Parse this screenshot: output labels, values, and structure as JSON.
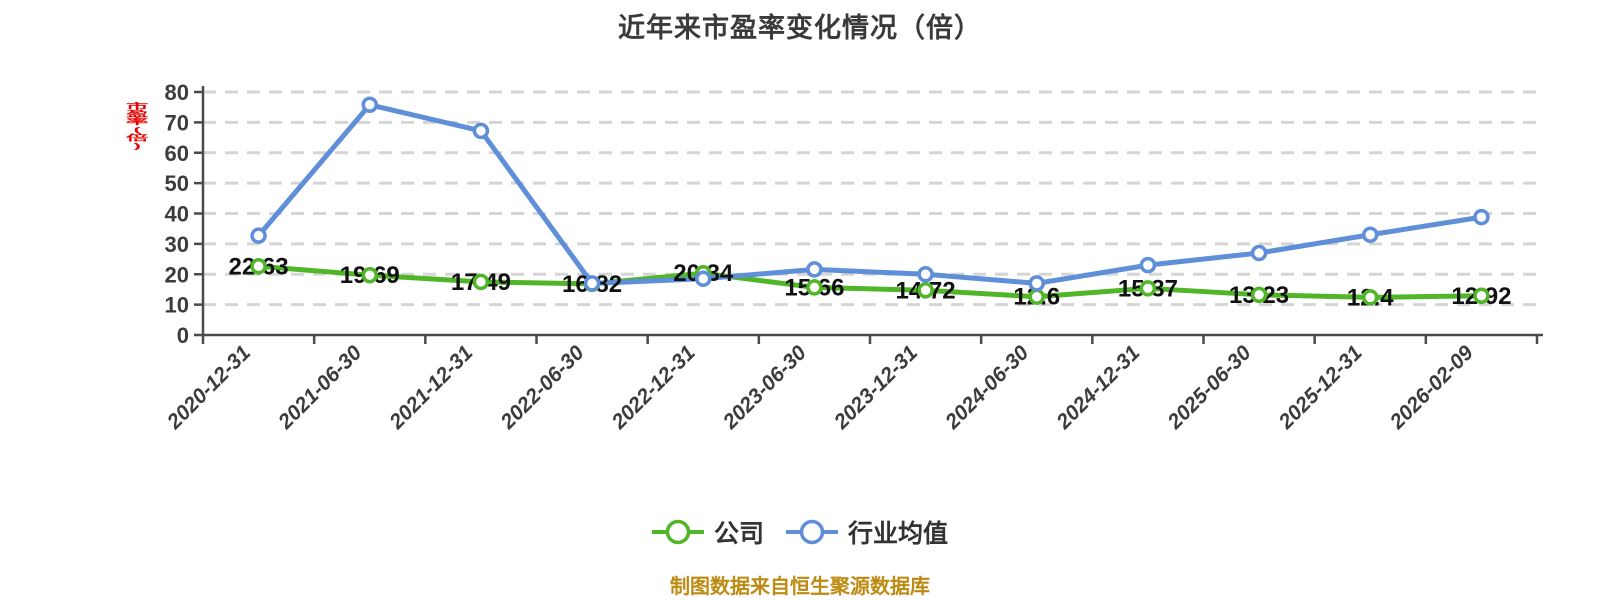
{
  "title": "近年来市盈率变化情况（倍）",
  "y_axis_label": {
    "text": "市盈率(倍)",
    "color": "#e60000"
  },
  "footer": {
    "text": "制图数据来自恒生聚源数据库"
  },
  "legend": {
    "items": [
      {
        "label": "公司",
        "color": "#50b628"
      },
      {
        "label": "行业均值",
        "color": "#5e8fd8"
      }
    ]
  },
  "colors": {
    "background": "#ffffff",
    "title": "#3a3a3a",
    "axis": "#4a4a4a",
    "tick_label": "#3c3c3c",
    "gridline": "#d5d5d5",
    "value_label": "#111111",
    "company_series": "#50b628",
    "industry_series": "#5e8fd8",
    "marker_fill": "#ffffff"
  },
  "chart_data": {
    "type": "line",
    "title": "近年来市盈率变化情况（倍）",
    "categories": [
      "2020-12-31",
      "2021-06-30",
      "2021-12-31",
      "2022-06-30",
      "2022-12-31",
      "2023-06-30",
      "2023-12-31",
      "2024-06-30",
      "2024-12-31",
      "2025-06-30",
      "2025-12-31",
      "2026-02-09"
    ],
    "series": [
      {
        "name": "公司",
        "color": "#50b628",
        "values": [
          22.63,
          19.69,
          17.49,
          16.82,
          20.34,
          15.66,
          14.72,
          12.6,
          15.37,
          13.23,
          12.4,
          12.92
        ],
        "point_labels": [
          "22.63",
          "19.69",
          "17.49",
          "16.82",
          "20.34",
          "15.66",
          "14.72",
          "12.6",
          "15.37",
          "13.23",
          "12.4",
          "12.92"
        ],
        "labels_shown": true
      },
      {
        "name": "行业均值",
        "color": "#5e8fd8",
        "values": [
          32.7,
          75.8,
          67.2,
          17.0,
          18.5,
          21.6,
          20.0,
          17.0,
          23.0,
          27.0,
          33.0,
          38.8
        ],
        "labels_shown": false
      }
    ],
    "xlabel": "",
    "ylabel": "市盈率(倍)",
    "ylim": [
      0,
      80
    ],
    "yticks": [
      0,
      10,
      20,
      30,
      40,
      50,
      60,
      70,
      80
    ],
    "grid": "horizontal-dashed",
    "legend_position": "bottom",
    "marker": "circle-white-fill"
  }
}
